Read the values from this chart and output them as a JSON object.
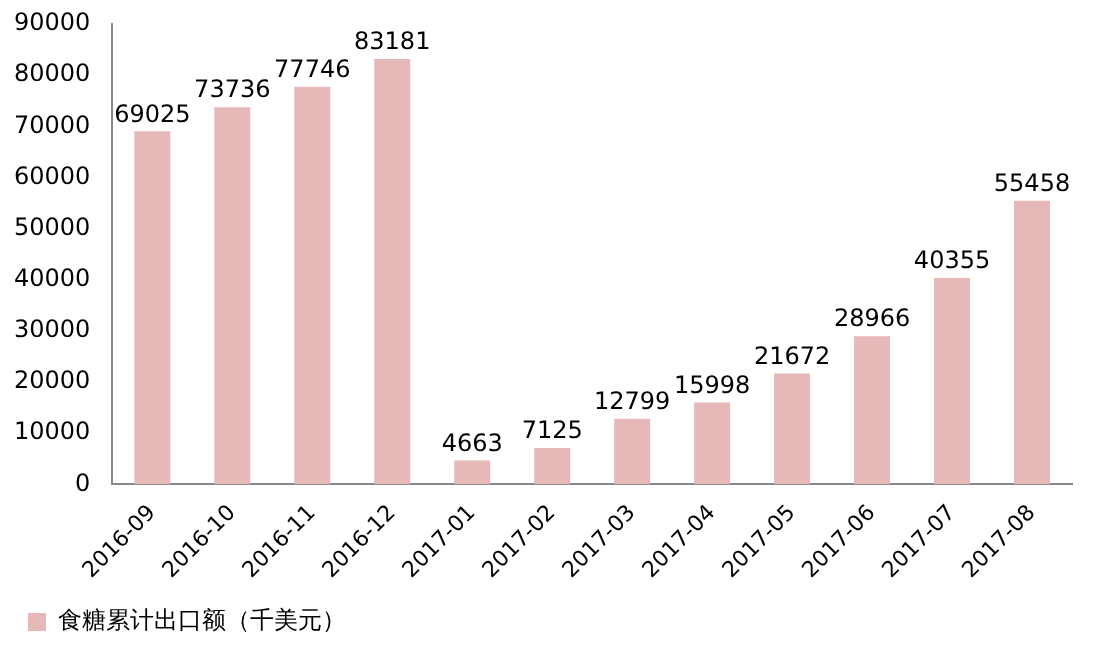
{
  "chart_data": {
    "type": "bar",
    "categories": [
      "2016-09",
      "2016-10",
      "2016-11",
      "2016-12",
      "2017-01",
      "2017-02",
      "2017-03",
      "2017-04",
      "2017-05",
      "2017-06",
      "2017-07",
      "2017-08"
    ],
    "series": [
      {
        "name": "食糖累计出口额（千美元）",
        "color": "#e6b9b8",
        "values": [
          69025,
          73736,
          77746,
          83181,
          4663,
          7125,
          12799,
          15998,
          21672,
          28966,
          40355,
          55458
        ]
      }
    ],
    "ylim": [
      0,
      90000
    ],
    "yticks": [
      0,
      10000,
      20000,
      30000,
      40000,
      50000,
      60000,
      70000,
      80000,
      90000
    ],
    "grid": false,
    "legend": "bottom left",
    "data_labels": true
  }
}
